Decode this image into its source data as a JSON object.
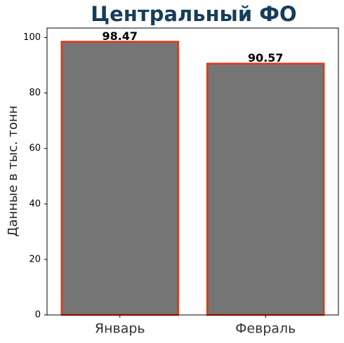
{
  "chart_data": {
    "type": "bar",
    "title": "Центральный ФО",
    "ylabel": "Данные в тыс. тонн",
    "categories": [
      "Январь",
      "Февраль"
    ],
    "values": [
      98.47,
      90.57
    ],
    "color": "#757575",
    "edgecolor": "#e8340f",
    "label_color": "#1b3d57",
    "ylim": [
      0,
      103.39
    ],
    "yticks": [
      0,
      20,
      40,
      60,
      80,
      100
    ],
    "grid": false
  }
}
